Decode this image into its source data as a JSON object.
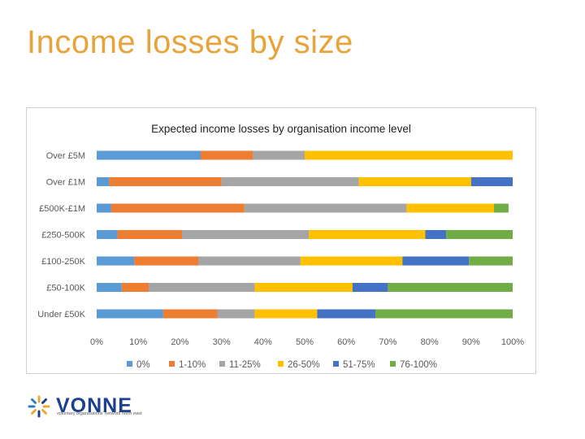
{
  "slide": {
    "title": "Income losses by size"
  },
  "logo": {
    "name": "VONNE",
    "tagline": "voluntary organisations' network north east"
  },
  "chart_data": {
    "type": "bar",
    "orientation": "horizontal",
    "stacked": true,
    "normalized": true,
    "title": "Expected income losses by organisation income level",
    "categories": [
      "Over £5M",
      "Over £1M",
      "£500K-£1M",
      "£250-500K",
      "£100-250K",
      "£50-100K",
      "Under £50K"
    ],
    "series": [
      {
        "name": "0%",
        "color": "#5b9bd5",
        "values": [
          25,
          3,
          3.5,
          5,
          9,
          6,
          16
        ]
      },
      {
        "name": "1-10%",
        "color": "#ed7d31",
        "values": [
          12.5,
          27,
          32,
          15.5,
          15.5,
          6.5,
          13
        ]
      },
      {
        "name": "11-25%",
        "color": "#a5a5a5",
        "values": [
          12.5,
          33,
          39,
          30.5,
          24.5,
          25.5,
          9
        ]
      },
      {
        "name": "26-50%",
        "color": "#ffc000",
        "values": [
          50,
          27,
          21,
          28,
          24.5,
          23.5,
          15
        ]
      },
      {
        "name": "51-75%",
        "color": "#4472c4",
        "values": [
          0,
          10,
          0,
          5,
          16,
          8.5,
          14
        ]
      },
      {
        "name": "76-100%",
        "color": "#70ad47",
        "values": [
          0,
          0,
          3.5,
          16,
          10.5,
          30,
          33
        ]
      }
    ],
    "x_ticks": [
      "0%",
      "10%",
      "20%",
      "30%",
      "40%",
      "50%",
      "60%",
      "70%",
      "80%",
      "90%",
      "100%"
    ],
    "xlim": [
      0,
      100
    ],
    "legend_position": "bottom"
  }
}
